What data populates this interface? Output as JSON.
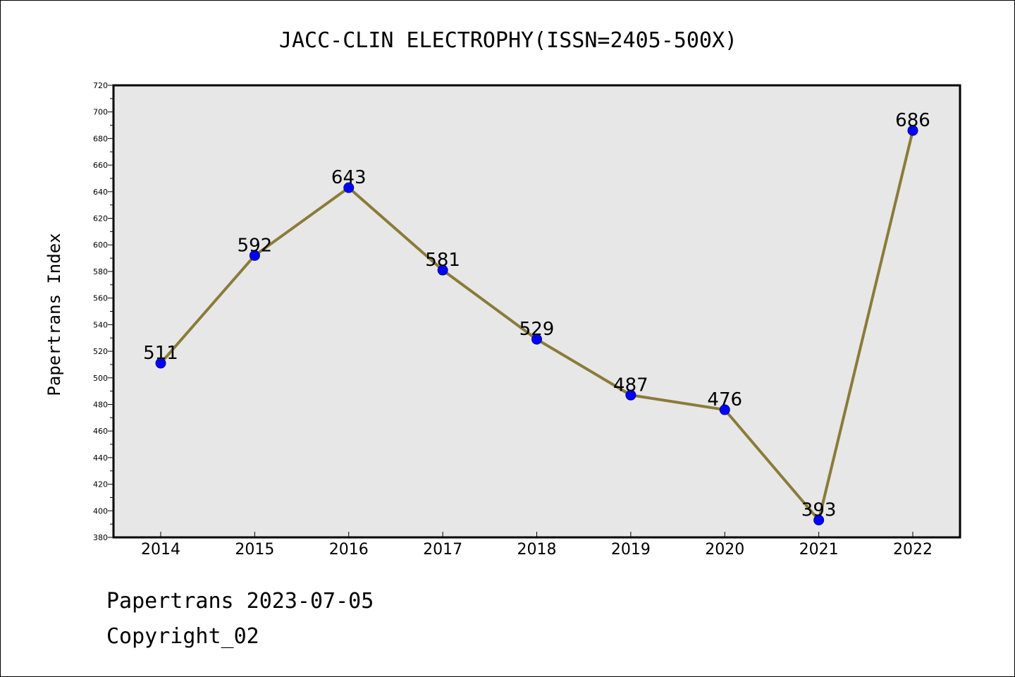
{
  "chart_data": {
    "type": "line",
    "title": "JACC-CLIN ELECTROPHY(ISSN=2405-500X)",
    "xlabel": "",
    "ylabel": "Papertrans Index",
    "categories": [
      "2014",
      "2015",
      "2016",
      "2017",
      "2018",
      "2019",
      "2020",
      "2021",
      "2022"
    ],
    "values": [
      511,
      592,
      643,
      581,
      529,
      487,
      476,
      393,
      686
    ],
    "ylim": [
      380,
      720
    ],
    "yticks": [
      380,
      400,
      420,
      440,
      460,
      480,
      500,
      520,
      540,
      560,
      580,
      600,
      620,
      640,
      660,
      680,
      700,
      720
    ],
    "grid": false,
    "colors": {
      "plot_background": "#e7e7e7",
      "line": "#8b7b3a",
      "marker": "#0000ff"
    }
  },
  "footer": {
    "line1": "Papertrans 2023-07-05",
    "line2": "Copyright_02"
  }
}
